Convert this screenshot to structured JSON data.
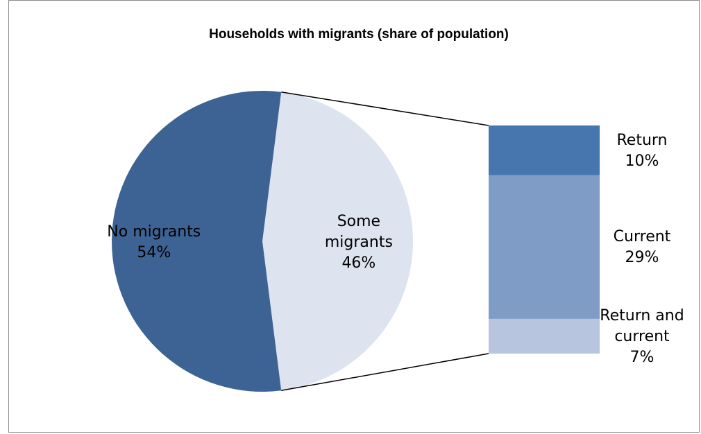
{
  "chart_data": {
    "type": "pie",
    "title": "Households with migrants (share of population)",
    "slices": [
      {
        "label_lines": [
          "No migrants"
        ],
        "value": 54,
        "value_text": "54%",
        "color": "#3d6394"
      },
      {
        "label_lines": [
          "Some",
          "migrants"
        ],
        "value": 46,
        "value_text": "46%",
        "color": "#dde3ef"
      }
    ],
    "breakdown_of": "Some migrants",
    "breakdown": [
      {
        "label_lines": [
          "Return"
        ],
        "value": 10,
        "value_text": "10%",
        "color": "#4775ad"
      },
      {
        "label_lines": [
          "Current"
        ],
        "value": 29,
        "value_text": "29%",
        "color": "#7f9cc6"
      },
      {
        "label_lines": [
          "Return and",
          "current"
        ],
        "value": 7,
        "value_text": "7%",
        "color": "#b7c5de"
      }
    ],
    "connector_color": "#000000"
  }
}
